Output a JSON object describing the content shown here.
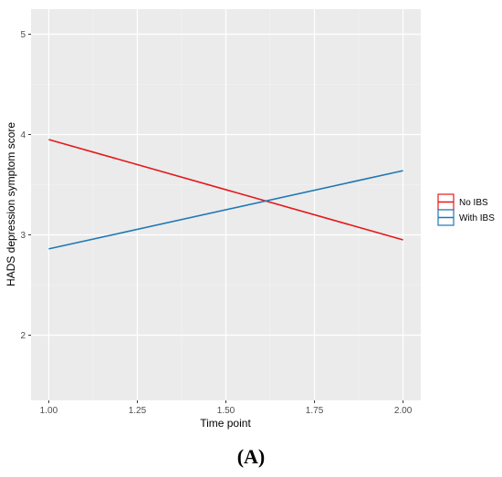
{
  "panel_label": "(A)",
  "chart_data": {
    "type": "line",
    "title": "",
    "xlabel": "Time point",
    "ylabel": "HADS depression symptom score",
    "xlim": [
      0.95,
      2.05
    ],
    "ylim": [
      1.35,
      5.25
    ],
    "x_ticks": [
      1.0,
      1.25,
      1.5,
      1.75,
      2.0
    ],
    "x_tick_labels": [
      "1.00",
      "1.25",
      "1.50",
      "1.75",
      "2.00"
    ],
    "y_ticks": [
      2,
      3,
      4,
      5
    ],
    "y_tick_labels": [
      "2",
      "3",
      "4",
      "5"
    ],
    "grid": true,
    "legend_position": "right",
    "series": [
      {
        "name": "No IBS",
        "color": "#e41a1c",
        "x": [
          1.0,
          2.0
        ],
        "y": [
          3.95,
          2.95
        ]
      },
      {
        "name": "With IBS",
        "color": "#1f78b4",
        "x": [
          1.0,
          2.0
        ],
        "y": [
          2.86,
          3.64
        ]
      }
    ]
  }
}
